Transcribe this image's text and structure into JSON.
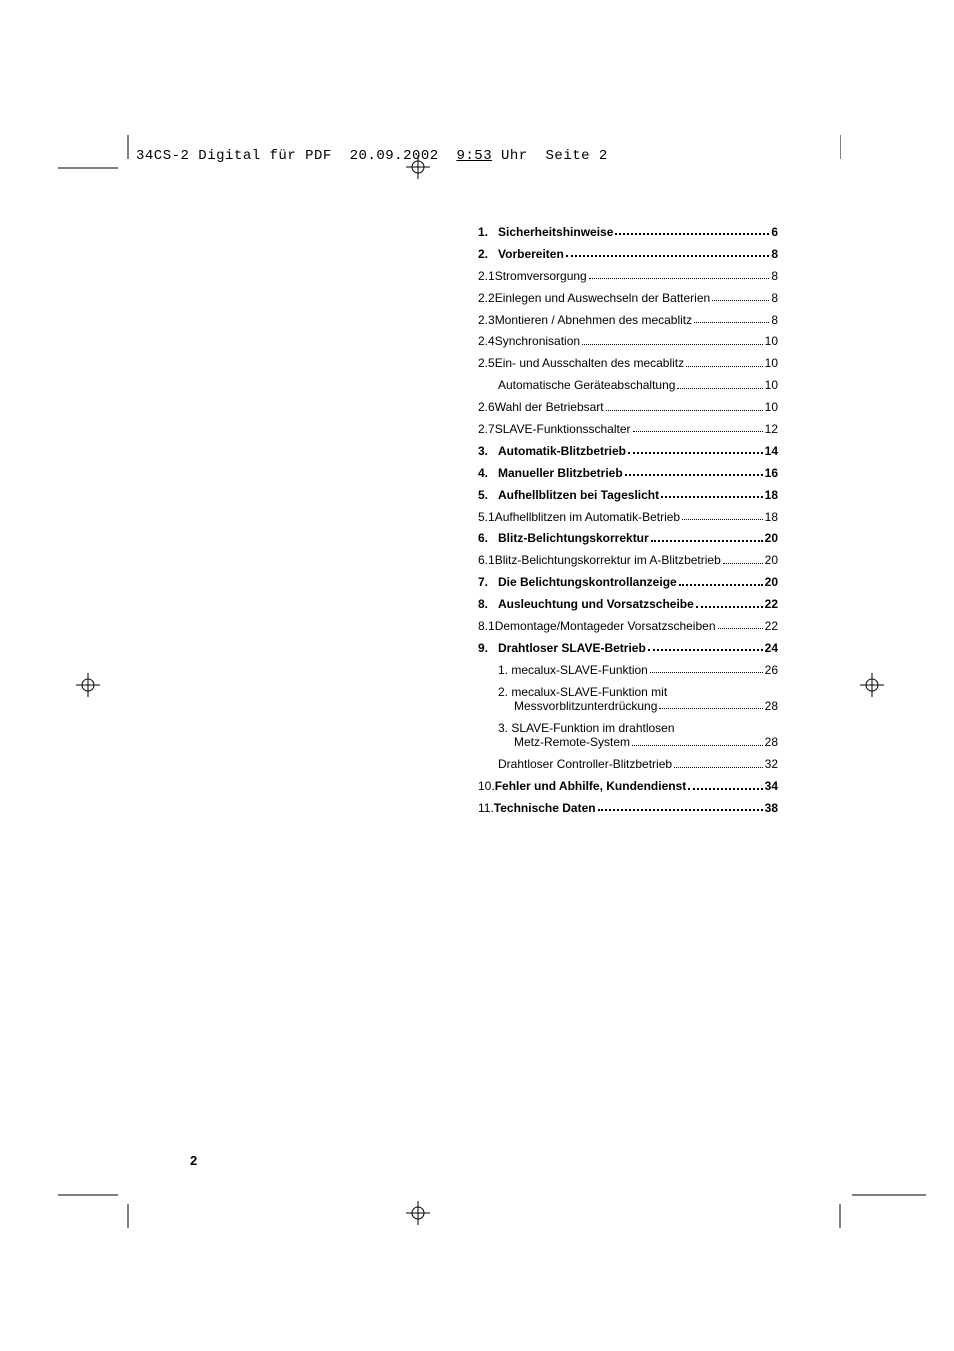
{
  "header": {
    "filename": "34CS-2 Digital für PDF",
    "date": "20.09.2002",
    "time": "9:53",
    "time_suffix": " Uhr",
    "page_label": "Seite 2"
  },
  "toc": [
    {
      "type": "item",
      "num": "1.",
      "label": "Sicherheitshinweise",
      "page": "6",
      "bold": true
    },
    {
      "type": "item",
      "num": "2.",
      "label": "Vorbereiten",
      "page": "8",
      "bold": true
    },
    {
      "type": "item",
      "num": "2.1",
      "label": "Stromversorgung",
      "page": "8",
      "bold": false,
      "no_gap": true
    },
    {
      "type": "item",
      "num": "2.2",
      "label": "Einlegen und Auswechseln der Batterien",
      "page": "8",
      "bold": false,
      "no_gap": true
    },
    {
      "type": "item",
      "num": "2.3",
      "label": "Montieren / Abnehmen des mecablitz",
      "page": "8",
      "bold": false,
      "no_gap": true
    },
    {
      "type": "item",
      "num": "2.4",
      "label": "Synchronisation",
      "page": "10",
      "bold": false,
      "no_gap": true
    },
    {
      "type": "item",
      "num": "2.5",
      "label": "Ein- und Ausschalten des mecablitz",
      "page": "10",
      "bold": false,
      "no_gap": true
    },
    {
      "type": "item",
      "num": "",
      "label": "Automatische Geräteabschaltung",
      "page": "10",
      "bold": false,
      "indent": true
    },
    {
      "type": "item",
      "num": "2.6",
      "label": "Wahl der Betriebsart",
      "page": "10",
      "bold": false,
      "no_gap": true
    },
    {
      "type": "item",
      "num": "2.7",
      "label": "SLAVE-Funktionsschalter",
      "page": "12",
      "bold": false,
      "no_gap": true
    },
    {
      "type": "item",
      "num": "3.",
      "label": "Automatik-Blitzbetrieb",
      "page": "14",
      "bold": true
    },
    {
      "type": "item",
      "num": "4.",
      "label": "Manueller Blitzbetrieb",
      "page": "16",
      "bold": true
    },
    {
      "type": "item",
      "num": "5.",
      "label": "Aufhellblitzen bei Tageslicht",
      "page": "18",
      "bold": true
    },
    {
      "type": "item",
      "num": "5.1",
      "label": "Aufhellblitzen im Automatik-Betrieb",
      "page": "18",
      "bold": false,
      "no_gap": true
    },
    {
      "type": "item",
      "num": "6.",
      "label": "Blitz-Belichtungskorrektur",
      "page": "20",
      "bold": true
    },
    {
      "type": "item",
      "num": "6.1",
      "label": "Blitz-Belichtungskorrektur im A-Blitzbetrieb",
      "page": "20",
      "bold": false,
      "no_gap": true
    },
    {
      "type": "item",
      "num": "7.",
      "label": "Die Belichtungskontrollanzeige",
      "page": "20",
      "bold": true
    },
    {
      "type": "item",
      "num": "8.",
      "label": "Ausleuchtung und Vorsatzscheibe",
      "page": "22",
      "bold": true
    },
    {
      "type": "item",
      "num": "8.1",
      "label": "Demontage/Montageder Vorsatzscheiben",
      "page": "22",
      "bold": false,
      "no_gap": true
    },
    {
      "type": "item",
      "num": "9.",
      "label": "Drahtloser SLAVE-Betrieb",
      "page": "24",
      "bold": true
    },
    {
      "type": "item",
      "num": "",
      "label": "1. mecalux-SLAVE-Funktion",
      "page": "26",
      "bold": false,
      "indent": true
    },
    {
      "type": "multiline",
      "line1": "2. mecalux-SLAVE-Funktion mit",
      "line2": "Messvorblitzunterdrückung",
      "page": "28"
    },
    {
      "type": "multiline",
      "line1": "3. SLAVE-Funktion im drahtlosen",
      "line2": "Metz-Remote-System",
      "page": "28"
    },
    {
      "type": "item",
      "num": "",
      "label": "Drahtloser Controller-Blitzbetrieb",
      "page": "32",
      "bold": false,
      "indent": true
    },
    {
      "type": "item",
      "num": "10.",
      "label": "Fehler und Abhilfe, Kundendienst",
      "page": "34",
      "bold": true,
      "no_gap": true
    },
    {
      "type": "item",
      "num": "11.",
      "label": "Technische Daten",
      "page": "38",
      "bold": true,
      "no_gap": true
    }
  ],
  "page_number": "2",
  "colors": {
    "bg": "#ffffff",
    "text": "#000000"
  }
}
